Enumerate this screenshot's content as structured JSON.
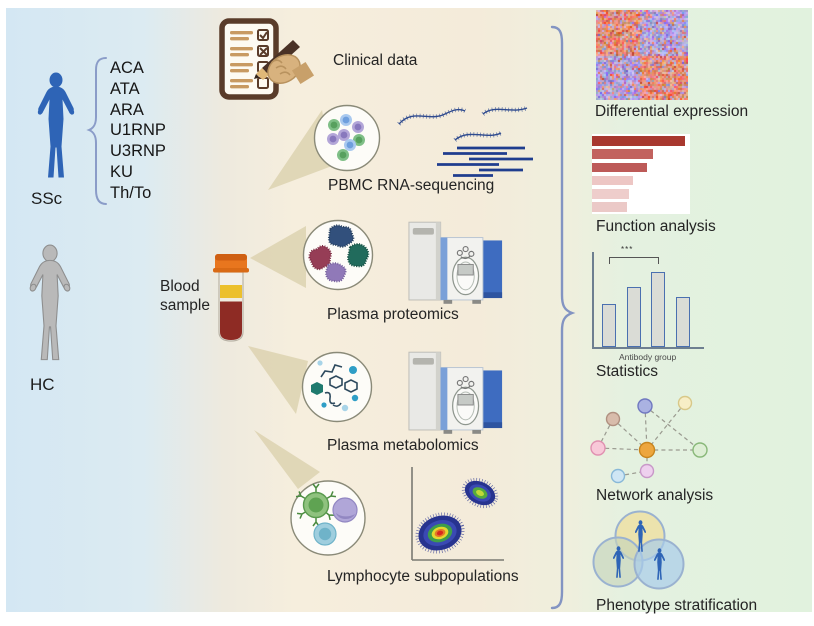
{
  "left_panel": {
    "ssc_label": "SSc",
    "hc_label": "HC",
    "antibodies": [
      "ACA",
      "ATA",
      "ARA",
      "U1RNP",
      "U3RNP",
      "KU",
      "Th/To"
    ]
  },
  "middle_panel": {
    "blood_sample_label": "Blood sample",
    "items": [
      {
        "label": "Clinical data",
        "icon": "clipboard-with-pen-icon"
      },
      {
        "label": "PBMC RNA-sequencing",
        "icon": "pbmc-cells-and-rna-reads-icon"
      },
      {
        "label": "Plasma proteomics",
        "icon": "protein-blobs-and-mass-spectrometer-icon"
      },
      {
        "label": "Plasma metabolomics",
        "icon": "metabolite-molecules-and-mass-spectrometer-icon"
      },
      {
        "label": "Lymphocyte subpopulations",
        "icon": "lymphocytes-and-flow-cytometry-plot-icon"
      }
    ]
  },
  "right_panel": {
    "items": [
      {
        "label": "Differential expression",
        "icon": "heatmap-icon"
      },
      {
        "label": "Function analysis",
        "icon": "horizontal-bar-chart-icon"
      },
      {
        "label": "Statistics",
        "icon": "vertical-bar-chart-icon"
      },
      {
        "label": "Network analysis",
        "icon": "network-graph-icon"
      },
      {
        "label": "Phenotype stratification",
        "icon": "venn-diagram-people-icon"
      }
    ],
    "function_analysis": {
      "type": "bar",
      "bars": [
        {
          "value": 0.95,
          "color": "#a8382f"
        },
        {
          "value": 0.62,
          "color": "#c2625e"
        },
        {
          "value": 0.56,
          "color": "#bd5a58"
        },
        {
          "value": 0.42,
          "color": "#edc6c4"
        },
        {
          "value": 0.38,
          "color": "#eecdcb"
        },
        {
          "value": 0.36,
          "color": "#ebc9c7"
        }
      ]
    },
    "statistics": {
      "type": "bar",
      "bars": [
        0.45,
        0.63,
        0.79,
        0.53
      ],
      "significance": "***",
      "xlabel": "Antibody group"
    }
  },
  "colors": {
    "ssc_person": "#2e64b6",
    "hc_person": "#b8b8b8",
    "brace": "#8394c2",
    "heatmap_warm": "#e0603e",
    "heatmap_cool": "#8f7fd8",
    "stat_bar_fill": "#dadcd6",
    "stat_bar_border": "#4a70b0"
  }
}
